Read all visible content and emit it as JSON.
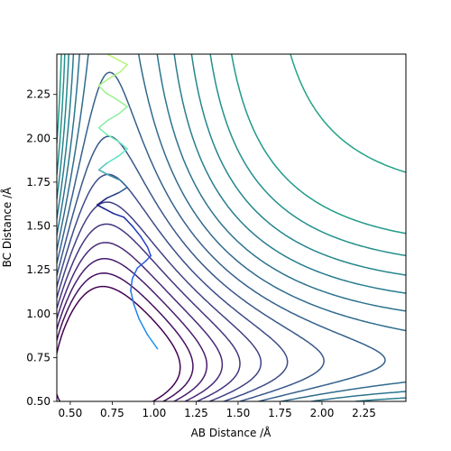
{
  "chart_data": {
    "type": "contour",
    "title": "",
    "xlabel": "AB Distance /Å",
    "ylabel": "BC Distance /Å",
    "xlim": [
      0.42,
      2.5
    ],
    "ylim": [
      0.5,
      2.48
    ],
    "xticks": [
      0.5,
      0.75,
      1.0,
      1.25,
      1.5,
      1.75,
      2.0,
      2.25
    ],
    "xtick_labels": [
      "0.50",
      "0.75",
      "1.00",
      "1.25",
      "1.50",
      "1.75",
      "2.00",
      "2.25"
    ],
    "yticks": [
      0.5,
      0.75,
      1.0,
      1.25,
      1.5,
      1.75,
      2.0,
      2.25
    ],
    "ytick_labels": [
      "0.50",
      "0.75",
      "1.00",
      "1.25",
      "1.50",
      "1.75",
      "2.00",
      "2.25"
    ],
    "colormap": "viridis",
    "potential": {
      "model": "LEPS-like",
      "d_e": 1.0,
      "alpha": 1.95,
      "r0": 0.74
    },
    "contour_levels": [
      -0.9,
      -0.8,
      -0.7,
      -0.6,
      -0.5,
      -0.4,
      -0.3,
      -0.2,
      -0.1,
      0.0,
      0.1,
      0.2,
      0.3,
      0.4,
      0.5,
      0.7,
      0.9,
      1.2,
      1.6,
      2.1,
      2.7,
      3.4,
      4.2,
      5.1,
      6.1,
      7.2,
      8.4
    ],
    "trajectory": [
      [
        1.02,
        0.8
      ],
      [
        0.96,
        0.88
      ],
      [
        0.91,
        0.97
      ],
      [
        0.88,
        1.05
      ],
      [
        0.86,
        1.13
      ],
      [
        0.87,
        1.2
      ],
      [
        0.9,
        1.26
      ],
      [
        0.95,
        1.3
      ],
      [
        0.98,
        1.33
      ],
      [
        0.96,
        1.38
      ],
      [
        0.92,
        1.44
      ],
      [
        0.87,
        1.5
      ],
      [
        0.82,
        1.55
      ],
      [
        0.76,
        1.57
      ],
      [
        0.7,
        1.6
      ],
      [
        0.66,
        1.62
      ],
      [
        0.72,
        1.66
      ],
      [
        0.79,
        1.69
      ],
      [
        0.84,
        1.72
      ],
      [
        0.8,
        1.76
      ],
      [
        0.73,
        1.79
      ],
      [
        0.67,
        1.82
      ],
      [
        0.72,
        1.86
      ],
      [
        0.79,
        1.9
      ],
      [
        0.84,
        1.94
      ],
      [
        0.79,
        1.98
      ],
      [
        0.72,
        2.02
      ],
      [
        0.67,
        2.06
      ],
      [
        0.72,
        2.1
      ],
      [
        0.79,
        2.14
      ],
      [
        0.84,
        2.18
      ],
      [
        0.78,
        2.22
      ],
      [
        0.71,
        2.26
      ],
      [
        0.67,
        2.3
      ],
      [
        0.73,
        2.34
      ],
      [
        0.8,
        2.38
      ],
      [
        0.84,
        2.42
      ],
      [
        0.78,
        2.45
      ],
      [
        0.72,
        2.48
      ]
    ],
    "grid": false,
    "legend": "none"
  }
}
